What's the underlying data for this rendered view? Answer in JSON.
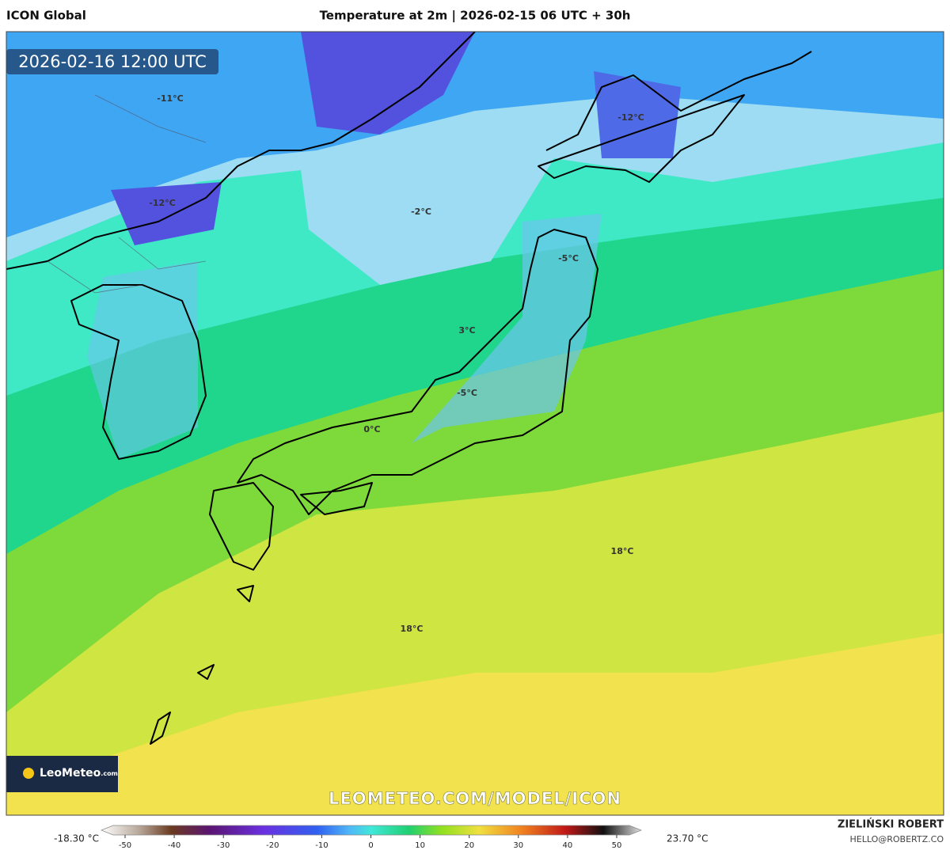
{
  "header": {
    "model": "ICON Global",
    "title": "Temperature at 2m | 2026-02-15 06 UTC + 30h"
  },
  "map": {
    "valid_time": "2026-02-16 12:00 UTC",
    "labels": [
      "-11°C",
      "-12°C",
      "-2°C",
      "-12°C",
      "-5°C",
      "3°C",
      "-5°C",
      "0°C",
      "18°C",
      "18°C"
    ],
    "logo": "LeoMeteo",
    "logo_suffix": ".com",
    "watermark": "LEOMETEO.COM/MODEL/ICON"
  },
  "colorbar": {
    "min_label": "-18.30 °C",
    "ticks": [
      -50,
      -40,
      -30,
      -20,
      -10,
      0,
      10,
      20,
      30,
      40,
      50
    ],
    "max_label": "23.70 °C"
  },
  "credit": {
    "author": "ZIELIŃSKI ROBERT",
    "email": "HELLO@ROBERTZ.CO"
  }
}
